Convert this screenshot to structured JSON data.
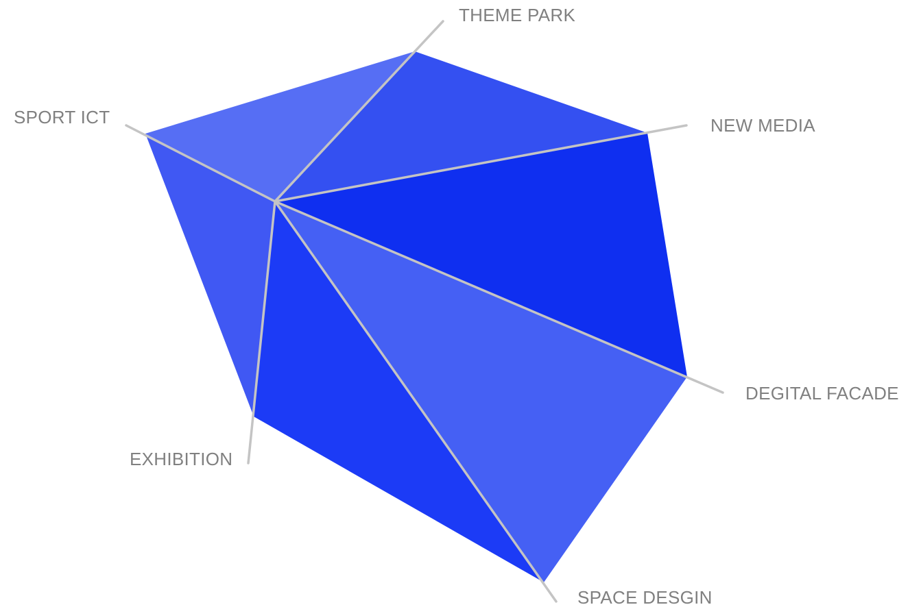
{
  "diagram": {
    "categories": [
      {
        "label": "THEME PARK",
        "fill": "#3450f1"
      },
      {
        "label": "NEW MEDIA",
        "fill": "#0f2ff0"
      },
      {
        "label": "DEGITAL FACADE",
        "fill": "#4560f4"
      },
      {
        "label": "SPACE DESGIN",
        "fill": "#1c3bf6"
      },
      {
        "label": "EXHIBITION",
        "fill": "#4058f3"
      },
      {
        "label": "SPORT ICT",
        "fill": "#566ef4"
      }
    ],
    "colors": {
      "axis_line": "#c4c4c4",
      "label_text": "#808080"
    }
  }
}
